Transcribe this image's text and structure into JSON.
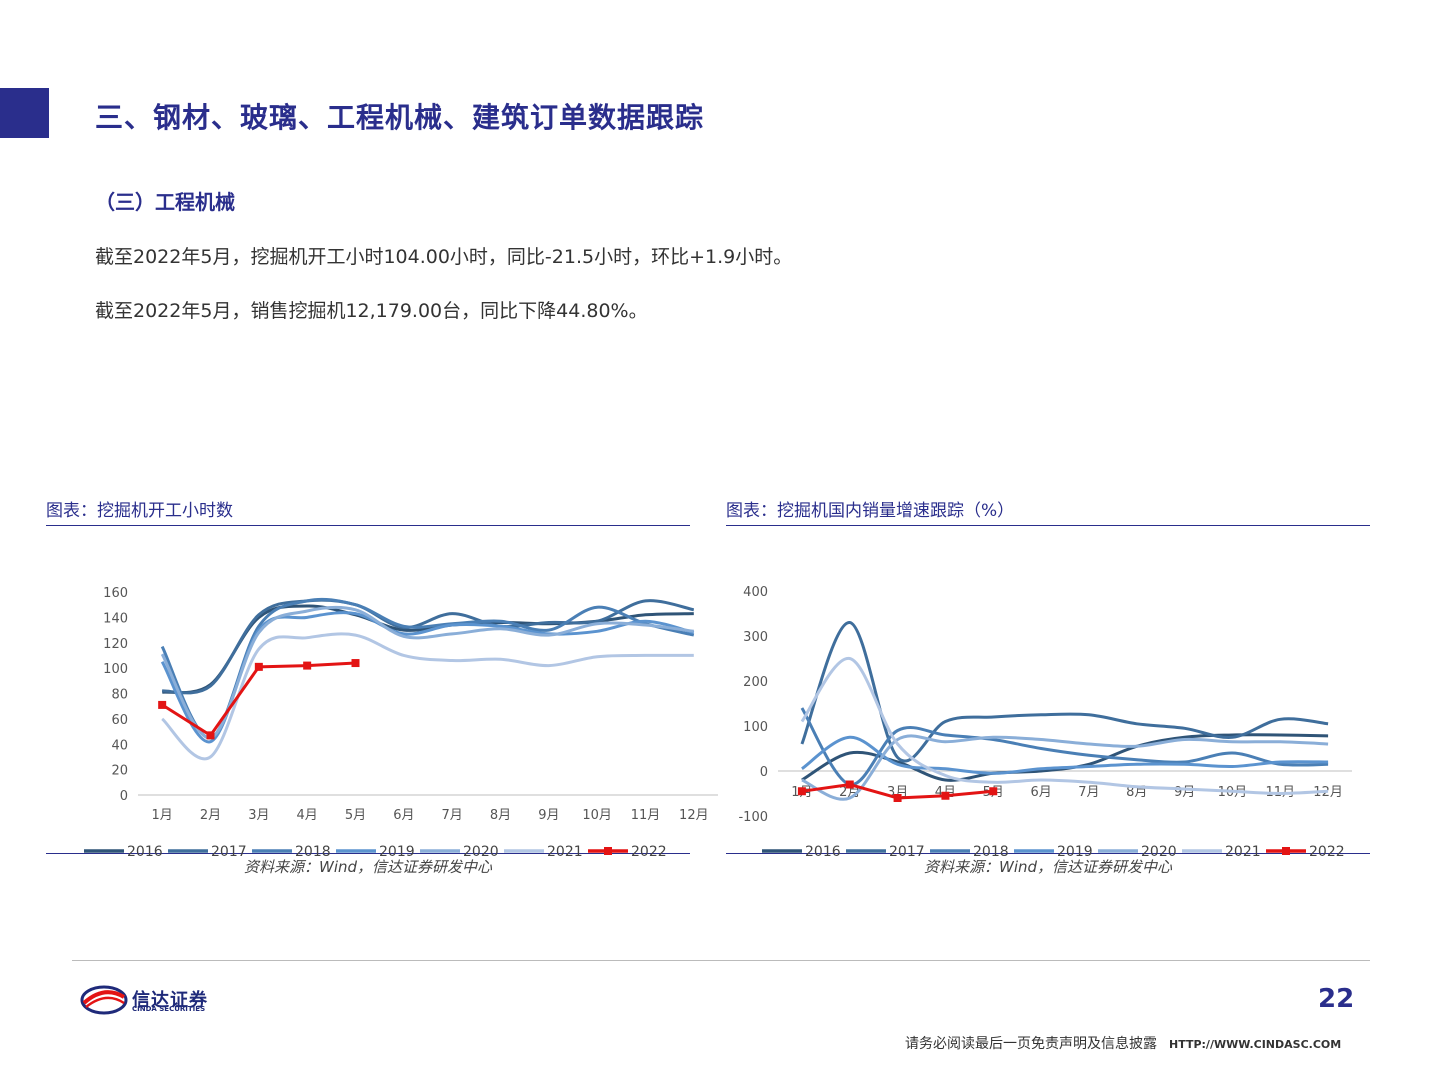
{
  "page": {
    "title": "三、钢材、玻璃、工程机械、建筑订单数据跟踪",
    "subtitle": "（三）工程机械",
    "paragraph1": "截至2022年5月，挖掘机开工小时104.00小时，同比-21.5小时，环比+1.9小时。",
    "paragraph2": "截至2022年5月，销售挖掘机12,179.00台，同比下降44.80%。",
    "page_number": "22",
    "disclaimer": "请务必阅读最后一页免责声明及信息披露",
    "url": "HTTP://WWW.CINDASC.COM",
    "logo": {
      "cn": "信达证券",
      "en": "CINDA SECURITIES"
    }
  },
  "colors": {
    "brand": "#2a2e8c",
    "s2016": "#2f5477",
    "s2017": "#3f6e9c",
    "s2018": "#4a7fb5",
    "s2019": "#5b93cf",
    "s2020": "#8aaed8",
    "s2021": "#b2c6e4",
    "s2022": "#e31414"
  },
  "chart_data": [
    {
      "type": "line",
      "title": "图表：挖掘机开工小时数",
      "source": "资料来源：Wind，信达证券研发中心",
      "x": [
        "1月",
        "2月",
        "3月",
        "4月",
        "5月",
        "6月",
        "7月",
        "8月",
        "9月",
        "10月",
        "11月",
        "12月"
      ],
      "ylim": [
        0,
        160
      ],
      "yticks": [
        0,
        20,
        40,
        60,
        80,
        100,
        120,
        140,
        160
      ],
      "legend_position": "bottom",
      "series": [
        {
          "name": "2016",
          "values": [
            81,
            87,
            140,
            149,
            142,
            130,
            134,
            136,
            135,
            137,
            142,
            143
          ]
        },
        {
          "name": "2017",
          "values": [
            82,
            86,
            142,
            153,
            150,
            132,
            143,
            133,
            136,
            137,
            153,
            146
          ]
        },
        {
          "name": "2018",
          "values": [
            117,
            45,
            133,
            153,
            150,
            133,
            135,
            137,
            130,
            148,
            135,
            126
          ]
        },
        {
          "name": "2019",
          "values": [
            105,
            42,
            130,
            140,
            143,
            127,
            134,
            133,
            127,
            129,
            137,
            128
          ]
        },
        {
          "name": "2020",
          "values": [
            111,
            45,
            128,
            145,
            146,
            125,
            127,
            131,
            126,
            135,
            134,
            129
          ]
        },
        {
          "name": "2021",
          "values": [
            60,
            30,
            115,
            124,
            126,
            110,
            106,
            107,
            102,
            109,
            110,
            110
          ]
        },
        {
          "name": "2022",
          "values": [
            71,
            47,
            101,
            102,
            104,
            null,
            null,
            null,
            null,
            null,
            null,
            null
          ]
        }
      ]
    },
    {
      "type": "line",
      "title": "图表：挖掘机国内销量增速跟踪（%）",
      "source": "资料来源：Wind，信达证券研发中心",
      "x": [
        "1月",
        "2月",
        "3月",
        "4月",
        "5月",
        "6月",
        "7月",
        "8月",
        "9月",
        "10月",
        "11月",
        "12月"
      ],
      "ylim": [
        -100,
        400
      ],
      "yticks": [
        -100,
        0,
        100,
        200,
        300,
        400
      ],
      "legend_position": "bottom",
      "series": [
        {
          "name": "2016",
          "values": [
            -20,
            40,
            20,
            -20,
            -5,
            0,
            15,
            55,
            75,
            80,
            80,
            78
          ]
        },
        {
          "name": "2017",
          "values": [
            60,
            330,
            30,
            110,
            120,
            125,
            125,
            105,
            95,
            75,
            115,
            105
          ]
        },
        {
          "name": "2018",
          "values": [
            140,
            -30,
            90,
            80,
            70,
            50,
            35,
            25,
            20,
            40,
            15,
            15
          ]
        },
        {
          "name": "2019",
          "values": [
            5,
            75,
            15,
            5,
            -5,
            5,
            10,
            15,
            15,
            10,
            20,
            20
          ]
        },
        {
          "name": "2020",
          "values": [
            -20,
            -60,
            70,
            65,
            75,
            70,
            60,
            55,
            70,
            65,
            65,
            60
          ]
        },
        {
          "name": "2021",
          "values": [
            110,
            250,
            60,
            -10,
            -25,
            -20,
            -25,
            -35,
            -40,
            -45,
            -50,
            -45
          ]
        },
        {
          "name": "2022",
          "values": [
            -45,
            -30,
            -60,
            -55,
            -45,
            null,
            null,
            null,
            null,
            null,
            null,
            null
          ]
        }
      ]
    }
  ]
}
